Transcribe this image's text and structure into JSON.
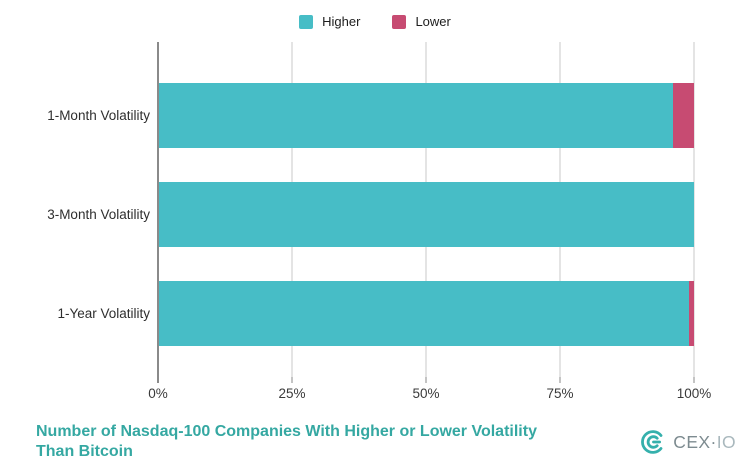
{
  "legend": {
    "items": [
      {
        "label": "Higher",
        "color": "#47BDC6"
      },
      {
        "label": "Lower",
        "color": "#C74B72"
      }
    ]
  },
  "chart_data": {
    "type": "bar",
    "orientation": "horizontal",
    "stacked": true,
    "categories": [
      "1-Month Volatility",
      "3-Month Volatility",
      "1-Year Volatility"
    ],
    "series": [
      {
        "name": "Higher",
        "color": "#47BDC6",
        "values": [
          96,
          100,
          99
        ]
      },
      {
        "name": "Lower",
        "color": "#C74B72",
        "values": [
          4,
          0,
          1
        ]
      }
    ],
    "x_tick_labels": [
      "0%",
      "25%",
      "50%",
      "75%",
      "100%"
    ],
    "x_tick_values": [
      0,
      25,
      50,
      75,
      100
    ],
    "xlim": [
      0,
      100
    ],
    "grid": "vertical",
    "legend_position": "top",
    "title": "Number of Nasdaq-100 Companies With Higher or Lower Volatility Than Bitcoin"
  },
  "title": {
    "line1": "Number of Nasdaq-100 Companies With Higher or Lower Volatility",
    "line2": "Than Bitcoin",
    "color": "#35A8A2"
  },
  "branding": {
    "logo_primary": "CEX",
    "logo_separator": "·",
    "logo_secondary": "IO",
    "icon_color": "#35B0AC",
    "primary_color": "#7D8B90",
    "secondary_color": "#A9B8BD"
  }
}
